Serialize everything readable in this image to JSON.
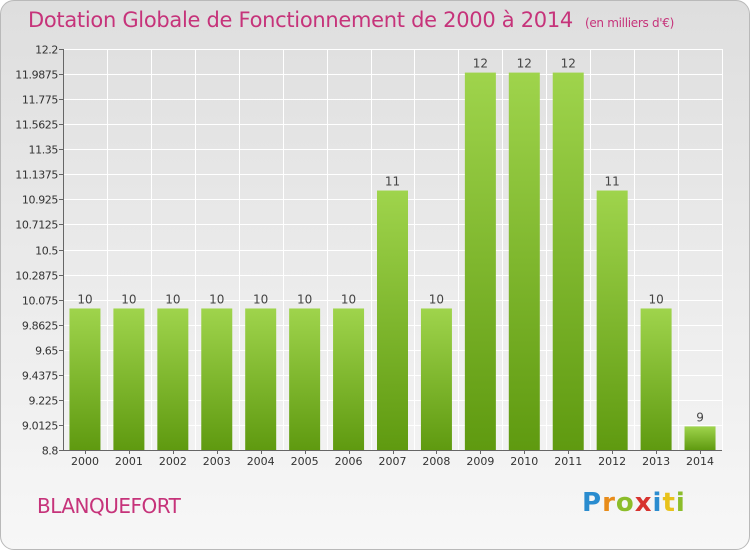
{
  "header": {
    "title": "Dotation Globale de Fonctionnement de 2000 à 2014",
    "unit": "(en milliers d'€)"
  },
  "footer": {
    "town": "BLANQUEFORT",
    "logo": [
      "P",
      "r",
      "o",
      "x",
      "i",
      "t",
      "i"
    ]
  },
  "chart_data": {
    "type": "bar",
    "categories": [
      "2000",
      "2001",
      "2002",
      "2003",
      "2004",
      "2005",
      "2006",
      "2007",
      "2008",
      "2009",
      "2010",
      "2011",
      "2012",
      "2013",
      "2014"
    ],
    "values": [
      10,
      10,
      10,
      10,
      10,
      10,
      10,
      11,
      10,
      12,
      12,
      12,
      11,
      10,
      9
    ],
    "data_labels": [
      "10",
      "10",
      "10",
      "10",
      "10",
      "10",
      "10",
      "11",
      "10",
      "12",
      "12",
      "12",
      "11",
      "10",
      "9"
    ],
    "y_ticks": [
      "8.8",
      "9.0125",
      "9.225",
      "9.4375",
      "9.65",
      "9.8625",
      "10.075",
      "10.2875",
      "10.5",
      "10.7125",
      "10.925",
      "11.1375",
      "11.35",
      "11.5625",
      "11.775",
      "11.9875",
      "12.2"
    ],
    "ylim": [
      8.8,
      12.2
    ],
    "grid": true,
    "colors": {
      "bar_light": "#9fd44c",
      "bar_dark": "#5f9a10",
      "grid": "#ffffff",
      "axis_text": "#333333",
      "title": "#c6337a"
    }
  }
}
